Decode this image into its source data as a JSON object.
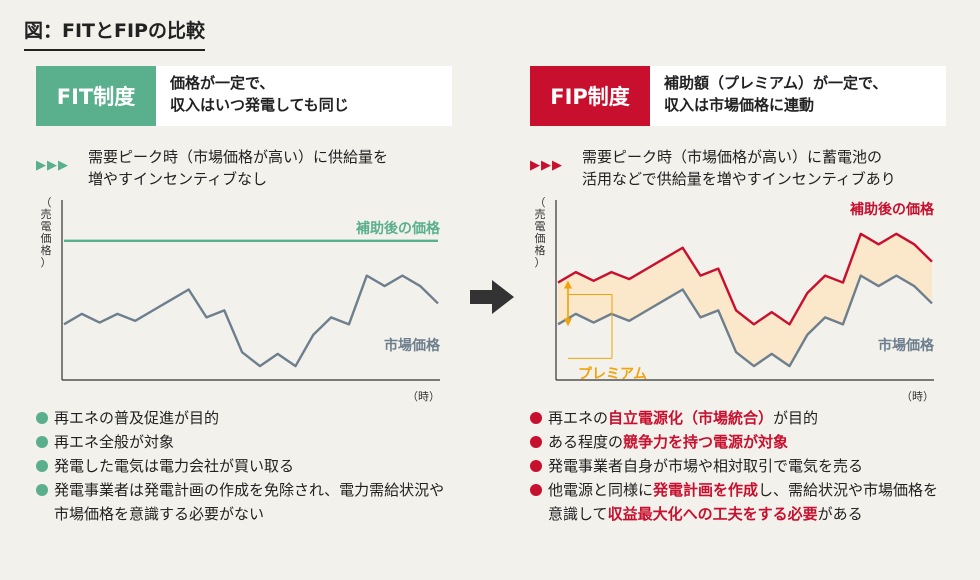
{
  "title": "図：FITとFIPの比較",
  "colors": {
    "fit_accent": "#5aaf8c",
    "fip_accent": "#c8102e",
    "market_line": "#6d7f8d",
    "premium_fill": "#fbe7c9",
    "premium_label": "#f0a30a"
  },
  "fit": {
    "badge": "FIT制度",
    "desc_line1": "価格が一定で、",
    "desc_line2": "収入はいつ発電しても同じ",
    "arrows": "▶▶▶",
    "lead_line1": "需要ピーク時（市場価格が高い）に供給量を",
    "lead_line2": "増やすインセンティブなし",
    "bullets": [
      "再エネの普及促進が目的",
      "再エネ全般が対象",
      "発電した電気は電力会社が買い取る",
      "発電事業者は発電計画の作成を免除され、電力需給状況や市場価格を意識する必要がない"
    ]
  },
  "fip": {
    "badge": "FIP制度",
    "desc_line1": "補助額（プレミアム）が一定で、",
    "desc_line2": "収入は市場価格に連動",
    "arrows": "▶▶▶",
    "lead_line1": "需要ピーク時（市場価格が高い）に蓄電池の",
    "lead_line2": "活用などで供給量を増やすインセンティブあり",
    "bullets": {
      "b1_a": "再エネの",
      "b1_hl": "自立電源化（市場統合）",
      "b1_b": "が目的",
      "b2_a": "ある程度の",
      "b2_hl": "競争力を持つ電源が対象",
      "b3": "発電事業者自身が市場や相対取引で電気を売る",
      "b4_a": "他電源と同様に",
      "b4_hl1": "発電計画を作成",
      "b4_b": "し、需給状況や市場価格を意識して",
      "b4_hl2": "収益最大化への工夫をする必要",
      "b4_c": "がある"
    }
  },
  "chart_data": [
    {
      "type": "line",
      "ylabel": "（売電価格）",
      "xlabel": "（時）",
      "x": [
        1,
        2,
        3,
        4,
        5,
        6,
        7,
        8,
        9,
        10,
        11,
        12,
        13,
        14,
        15,
        16,
        17,
        18,
        19,
        20,
        21,
        22
      ],
      "ylim": [
        0,
        10
      ],
      "series": [
        {
          "name": "補助後の価格",
          "values": [
            8,
            8,
            8,
            8,
            8,
            8,
            8,
            8,
            8,
            8,
            8,
            8,
            8,
            8,
            8,
            8,
            8,
            8,
            8,
            8,
            8,
            8
          ]
        },
        {
          "name": "市場価格",
          "values": [
            3.2,
            3.8,
            3.3,
            3.8,
            3.4,
            4.0,
            4.6,
            5.2,
            3.6,
            4.0,
            1.6,
            0.8,
            1.5,
            0.8,
            2.6,
            3.6,
            3.2,
            6.0,
            5.4,
            6.0,
            5.4,
            4.4
          ]
        }
      ]
    },
    {
      "type": "line",
      "ylabel": "（売電価格）",
      "xlabel": "（時）",
      "x": [
        1,
        2,
        3,
        4,
        5,
        6,
        7,
        8,
        9,
        10,
        11,
        12,
        13,
        14,
        15,
        16,
        17,
        18,
        19,
        20,
        21,
        22
      ],
      "ylim": [
        0,
        10
      ],
      "premium_label": "プレミアム",
      "series": [
        {
          "name": "補助後の価格",
          "values": [
            5.6,
            6.2,
            5.7,
            6.2,
            5.8,
            6.4,
            7.0,
            7.6,
            6.0,
            6.4,
            4.0,
            3.2,
            3.9,
            3.2,
            5.0,
            6.0,
            5.6,
            8.4,
            7.8,
            8.4,
            7.8,
            6.8
          ]
        },
        {
          "name": "市場価格",
          "values": [
            3.2,
            3.8,
            3.3,
            3.8,
            3.4,
            4.0,
            4.6,
            5.2,
            3.6,
            4.0,
            1.6,
            0.8,
            1.5,
            0.8,
            2.6,
            3.6,
            3.2,
            6.0,
            5.4,
            6.0,
            5.4,
            4.4
          ]
        }
      ]
    }
  ]
}
